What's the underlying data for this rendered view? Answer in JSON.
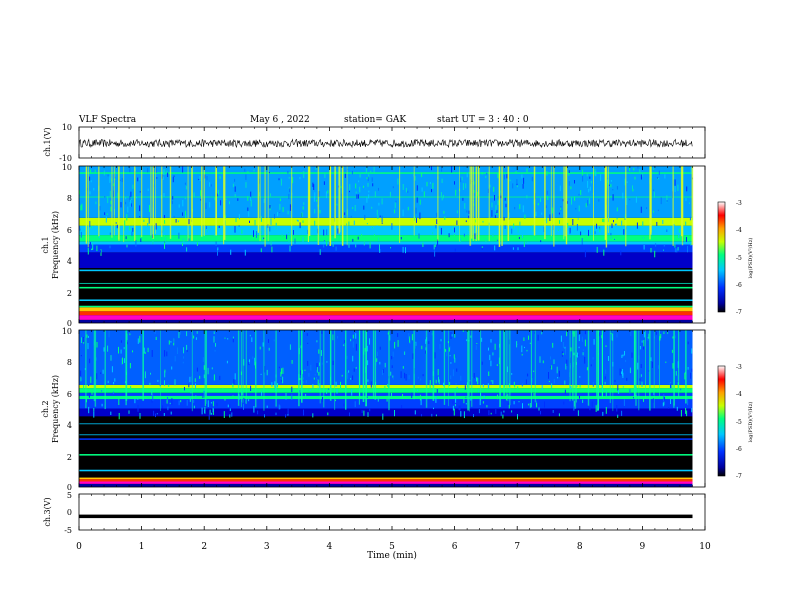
{
  "header": {
    "title": "VLF Spectra",
    "date": "May 6  , 2022",
    "station": "station= GAK",
    "start": "start  UT  =   3  : 40 : 0"
  },
  "chart_data": [
    {
      "type": "line",
      "name": "ch1-waveform",
      "ylabel": "ch.1(V)",
      "ylim": [
        -10,
        10
      ],
      "ytick_labels": [
        "10",
        "-10"
      ],
      "baseline": -0.5,
      "amplitude": 2.5
    },
    {
      "type": "heatmap",
      "name": "ch1-spectrogram",
      "ylabel_top": "ch.1",
      "ylabel": "Frequency  (kHz)",
      "ylim": [
        0,
        10
      ],
      "ytick_labels": [
        "0",
        "2",
        "4",
        "6",
        "8",
        "10"
      ],
      "colorbar": {
        "label": "log(PSD)(V²/Hz)",
        "range": [
          -7,
          -3
        ],
        "tick_labels": [
          "-3",
          "-4",
          "-5",
          "-6",
          "-7"
        ]
      }
    },
    {
      "type": "heatmap",
      "name": "ch2-spectrogram",
      "ylabel_top": "ch.2",
      "ylabel": "Frequency  (kHz)",
      "ylim": [
        0,
        10
      ],
      "ytick_labels": [
        "0",
        "2",
        "4",
        "6",
        "8",
        "10"
      ],
      "colorbar": {
        "label": "log(PSD)(V²/Hz)",
        "range": [
          -7,
          -3
        ],
        "tick_labels": [
          "-3",
          "-4",
          "-5",
          "-6",
          "-7"
        ]
      }
    },
    {
      "type": "line",
      "name": "ch3-waveform",
      "ylabel": "ch.3(V)",
      "ylim": [
        -5,
        5
      ],
      "ytick_labels": [
        "5",
        "0",
        "-5"
      ],
      "level": -1.2
    }
  ],
  "xaxis": {
    "label": "Time  (min)",
    "range": [
      0,
      10
    ],
    "data_end": 9.8,
    "tick_labels": [
      "0",
      "1",
      "2",
      "3",
      "4",
      "5",
      "6",
      "7",
      "8",
      "9",
      "10"
    ]
  }
}
